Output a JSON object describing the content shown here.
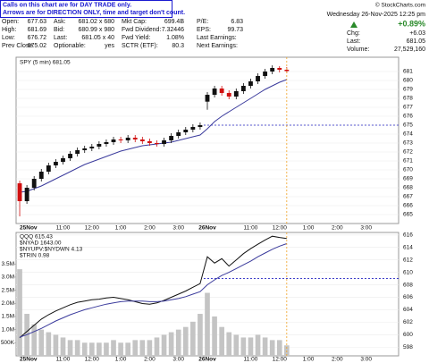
{
  "header": {
    "notice": [
      "Calls on this chart are for DAY TRADE only.",
      "Arrows are for DIRECTION ONLY, time and target don't count."
    ],
    "columns": [
      [
        {
          "label": "Open:",
          "value": "677.63"
        },
        {
          "label": "High:",
          "value": "681.69"
        },
        {
          "label": "Low:",
          "value": "676.72"
        },
        {
          "label": "Prev Close:",
          "value": "675.02"
        }
      ],
      [
        {
          "label": "Ask:",
          "value": "681.02 x 680"
        },
        {
          "label": "Bid:",
          "value": "680.99 x 980"
        },
        {
          "label": "Last:",
          "value": "681.05 x 40"
        },
        {
          "label": "Optionable:",
          "value": "yes"
        }
      ],
      [
        {
          "label": "Mkt Cap:",
          "value": "699.4B"
        },
        {
          "label": "Fwd Dividend:",
          "value": "7.32446"
        },
        {
          "label": "Fwd Yield:",
          "value": "1.08%"
        },
        {
          "label": "SCTR (ETF):",
          "value": "80.3"
        }
      ],
      [
        {
          "label": "P/E:",
          "value": "6.83"
        },
        {
          "label": "EPS:",
          "value": "99.73"
        },
        {
          "label": "Last Earnings:"
        },
        {
          "label": "Next Earnings:"
        }
      ]
    ],
    "copyright": "© StockCharts.com",
    "datetime": "Wednesday 26-Nov-2025 12:25 pm",
    "change_pct": "+0.89%",
    "quote": [
      {
        "label": "Chg:",
        "value": "+6.03"
      },
      {
        "label": "Last:",
        "value": "681.05"
      },
      {
        "label": "Volume:",
        "value": "27,529,160"
      }
    ]
  },
  "chart_data": [
    {
      "type": "candlestick",
      "legend": "SPY (5 min) 681.05",
      "categories": [
        "25Nov",
        null,
        null,
        null,
        null,
        null,
        "11:00",
        null,
        null,
        null,
        "12:00",
        null,
        null,
        null,
        "1:00",
        null,
        null,
        null,
        "2:00",
        null,
        null,
        null,
        "3:00",
        null,
        null,
        null,
        "26Nov",
        null,
        null,
        null,
        null,
        null,
        "11:00",
        null,
        null,
        null,
        "12:00",
        null,
        null,
        null,
        "1:00",
        null,
        null,
        null,
        "2:00",
        null,
        null,
        null,
        "3:00",
        null,
        null,
        null,
        null
      ],
      "open": [
        668.5,
        666.5,
        668.0,
        669.0,
        669.8,
        670.5,
        670.9,
        671.3,
        671.8,
        672.2,
        672.4,
        672.6,
        672.9,
        673.1,
        673.4,
        673.3,
        673.6,
        673.4,
        673.2,
        673.0,
        672.9,
        673.3,
        673.8,
        674.2,
        674.5,
        674.8,
        677.63,
        678.4,
        679.1,
        678.6,
        678.2,
        678.8,
        679.4,
        679.9,
        680.5,
        681.0,
        681.4,
        681.2,
        null,
        null,
        null,
        null,
        null,
        null,
        null,
        null,
        null,
        null,
        null,
        null,
        null,
        null,
        null
      ],
      "high": [
        668.8,
        668.3,
        669.3,
        670.1,
        670.8,
        671.2,
        671.6,
        672.1,
        672.5,
        672.7,
        672.9,
        673.2,
        673.4,
        673.7,
        673.7,
        673.9,
        673.9,
        673.7,
        673.5,
        673.3,
        673.6,
        674.1,
        674.5,
        674.8,
        675.1,
        675.3,
        678.7,
        679.4,
        679.4,
        678.9,
        679.1,
        679.7,
        680.2,
        680.8,
        681.3,
        681.69,
        681.6,
        681.5,
        null,
        null,
        null,
        null,
        null,
        null,
        null,
        null,
        null,
        null,
        null,
        null,
        null,
        null,
        null
      ],
      "low": [
        664.8,
        666.2,
        667.7,
        668.7,
        669.5,
        670.2,
        670.6,
        671.0,
        671.5,
        671.9,
        672.1,
        672.3,
        672.6,
        672.8,
        673.0,
        673.0,
        673.1,
        672.9,
        672.7,
        672.6,
        672.6,
        673.0,
        673.5,
        673.9,
        674.2,
        674.5,
        676.72,
        678.1,
        678.3,
        677.9,
        677.9,
        678.5,
        679.1,
        679.6,
        680.2,
        680.7,
        680.9,
        680.8,
        null,
        null,
        null,
        null,
        null,
        null,
        null,
        null,
        null,
        null,
        null,
        null,
        null,
        null,
        null
      ],
      "close": [
        666.5,
        668.0,
        669.0,
        669.8,
        670.5,
        670.9,
        671.3,
        671.8,
        672.2,
        672.4,
        672.6,
        672.9,
        673.1,
        673.4,
        673.3,
        673.6,
        673.4,
        673.2,
        673.0,
        672.9,
        673.3,
        673.8,
        674.2,
        674.5,
        674.8,
        675.0,
        678.4,
        679.1,
        678.6,
        678.2,
        678.8,
        679.4,
        679.9,
        680.5,
        681.0,
        681.4,
        681.2,
        681.05,
        null,
        null,
        null,
        null,
        null,
        null,
        null,
        null,
        null,
        null,
        null,
        null,
        null,
        null,
        null
      ],
      "up_color": "#111111",
      "down_color": "#d01010",
      "series": [
        {
          "color": "#3a3a9c",
          "values": [
            667.5,
            667.6,
            667.9,
            668.2,
            668.6,
            669.0,
            669.4,
            669.8,
            670.2,
            670.6,
            670.9,
            671.2,
            671.5,
            671.8,
            672.1,
            672.3,
            672.5,
            672.7,
            672.8,
            672.9,
            673.0,
            673.1,
            673.3,
            673.5,
            673.7,
            673.9,
            674.6,
            675.4,
            676.0,
            676.5,
            677.0,
            677.5,
            678.0,
            678.5,
            679.0,
            679.4,
            679.8,
            680.1,
            null,
            null,
            null,
            null,
            null,
            null,
            null,
            null,
            null,
            null,
            null,
            null,
            null,
            null,
            null
          ]
        }
      ],
      "reference_line": 675,
      "reference_color": "#2020c0",
      "ylim": [
        664,
        682.6
      ],
      "yticks": [
        665,
        666,
        667,
        668,
        669,
        670,
        671,
        672,
        673,
        674,
        675,
        676,
        677,
        678,
        679,
        680,
        681
      ],
      "grid": true
    },
    {
      "type": "combo",
      "legend": [
        "QQQ 615.43",
        "$NYAD 1643.00",
        "$NYUPV:$NYDWN 4.13",
        "$TRIN 0.98"
      ],
      "categories": [
        "25Nov",
        null,
        null,
        null,
        null,
        null,
        "11:00",
        null,
        null,
        null,
        "12:00",
        null,
        null,
        null,
        "1:00",
        null,
        null,
        null,
        "2:00",
        null,
        null,
        null,
        "3:00",
        null,
        null,
        null,
        "26Nov",
        null,
        null,
        null,
        null,
        null,
        "11:00",
        null,
        null,
        null,
        "12:00",
        null,
        null,
        null,
        "1:00",
        null,
        null,
        null,
        "2:00",
        null,
        null,
        null,
        "3:00",
        null,
        null,
        null,
        null
      ],
      "series": [
        {
          "kind": "bar",
          "color": "#c4c4c4",
          "values": [
            3300000,
            1600000,
            1200000,
            1000000,
            900000,
            800000,
            700000,
            600000,
            600000,
            500000,
            500000,
            500000,
            500000,
            600000,
            500000,
            500000,
            600000,
            600000,
            600000,
            700000,
            800000,
            900000,
            1000000,
            1100000,
            1300000,
            1600000,
            2400000,
            1500000,
            1100000,
            900000,
            800000,
            700000,
            700000,
            800000,
            700000,
            600000,
            600000,
            400000,
            null,
            null,
            null,
            null,
            null,
            null,
            null,
            null,
            null,
            null,
            null,
            null,
            null,
            null,
            null
          ]
        },
        {
          "kind": "line",
          "axis": "y2",
          "color": "#111111",
          "values": [
            599.5,
            600.5,
            601.5,
            602.5,
            603.2,
            603.8,
            604.3,
            604.8,
            605.2,
            605.4,
            605.6,
            605.7,
            605.9,
            606.0,
            605.8,
            605.6,
            605.3,
            605.0,
            604.9,
            605.1,
            605.5,
            606.0,
            606.5,
            607.0,
            607.6,
            608.2,
            612.5,
            611.5,
            612.2,
            611.0,
            612.0,
            613.0,
            613.8,
            614.5,
            615.2,
            615.8,
            615.6,
            615.43,
            null,
            null,
            null,
            null,
            null,
            null,
            null,
            null,
            null,
            null,
            null,
            null,
            null,
            null,
            null
          ]
        },
        {
          "kind": "line",
          "axis": "y2",
          "color": "#3a3a9c",
          "values": [
            599.6,
            600.0,
            600.5,
            601.0,
            601.6,
            602.2,
            602.7,
            603.2,
            603.6,
            604.0,
            604.3,
            604.6,
            604.9,
            605.1,
            605.3,
            605.4,
            605.4,
            605.4,
            605.3,
            605.3,
            605.4,
            605.6,
            605.8,
            606.1,
            606.5,
            606.9,
            608.0,
            608.8,
            609.5,
            610.0,
            610.6,
            611.2,
            611.8,
            612.5,
            613.1,
            613.7,
            614.2,
            614.6,
            null,
            null,
            null,
            null,
            null,
            null,
            null,
            null,
            null,
            null,
            null,
            null,
            null,
            null,
            null
          ]
        }
      ],
      "reference_line": 609,
      "reference_color": "#2020c0",
      "ylim": [
        0,
        4700000
      ],
      "yticks": [
        {
          "value": 500000,
          "label": "500K"
        },
        {
          "value": 1000000,
          "label": "1.0M"
        },
        {
          "value": 1500000,
          "label": "1.5M"
        },
        {
          "value": 2000000,
          "label": "2.0M"
        },
        {
          "value": 2500000,
          "label": "2.5M"
        },
        {
          "value": 3000000,
          "label": "3.0M"
        },
        {
          "value": 3500000,
          "label": "3.5M"
        }
      ],
      "y2lim": [
        596.6,
        616.4
      ],
      "y2ticks": [
        598,
        600,
        602,
        604,
        606,
        608,
        610,
        612,
        614,
        616
      ],
      "grid": true
    }
  ]
}
